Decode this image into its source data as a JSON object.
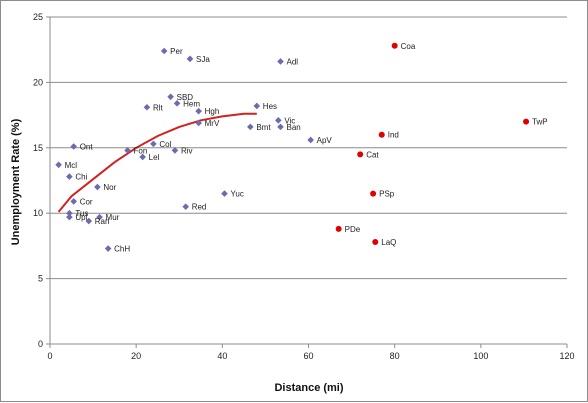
{
  "chart_data": {
    "type": "scatter",
    "title": "",
    "xlabel": "Distance (mi)",
    "ylabel": "Unemployment Rate (%)",
    "xlim": [
      0,
      120
    ],
    "ylim": [
      0,
      25
    ],
    "xticks": [
      "0",
      "20",
      "40",
      "60",
      "80",
      "100",
      "120"
    ],
    "yticks": [
      "0",
      "5",
      "10",
      "15",
      "20",
      "25"
    ],
    "grid": "horizontal",
    "colors": {
      "blue": "#6b6bb0",
      "red": "#e00000",
      "trend": "#d42020"
    },
    "series": [
      {
        "marker": "diamond",
        "color": "#6b6bb0",
        "points": [
          {
            "label": "Per",
            "x": 26.5,
            "y": 22.4
          },
          {
            "label": "SJa",
            "x": 32.5,
            "y": 21.8
          },
          {
            "label": "Adl",
            "x": 53.5,
            "y": 21.6
          },
          {
            "label": "SBD",
            "x": 28.0,
            "y": 18.9
          },
          {
            "label": "Hem",
            "x": 29.5,
            "y": 18.4
          },
          {
            "label": "Rlt",
            "x": 22.5,
            "y": 18.1
          },
          {
            "label": "Hes",
            "x": 48.0,
            "y": 18.2
          },
          {
            "label": "Hgh",
            "x": 34.5,
            "y": 17.8
          },
          {
            "label": "MrV",
            "x": 34.5,
            "y": 16.9
          },
          {
            "label": "Vic",
            "x": 53.0,
            "y": 17.1
          },
          {
            "label": "Ban",
            "x": 53.5,
            "y": 16.6
          },
          {
            "label": "Bmt",
            "x": 46.5,
            "y": 16.6
          },
          {
            "label": "ApV",
            "x": 60.5,
            "y": 15.6
          },
          {
            "label": "Ont",
            "x": 5.5,
            "y": 15.1
          },
          {
            "label": "Col",
            "x": 24.0,
            "y": 15.3
          },
          {
            "label": "Fon",
            "x": 18.0,
            "y": 14.8
          },
          {
            "label": "Riv",
            "x": 29.0,
            "y": 14.8
          },
          {
            "label": "Lel",
            "x": 21.5,
            "y": 14.3
          },
          {
            "label": "Mcl",
            "x": 2.0,
            "y": 13.7
          },
          {
            "label": "Chi",
            "x": 4.5,
            "y": 12.8
          },
          {
            "label": "Nor",
            "x": 11.0,
            "y": 12.0
          },
          {
            "label": "Yuc",
            "x": 40.5,
            "y": 11.5
          },
          {
            "label": "Cor",
            "x": 5.5,
            "y": 10.9
          },
          {
            "label": "Red",
            "x": 31.5,
            "y": 10.5
          },
          {
            "label": "Tus",
            "x": 4.5,
            "y": 10.0
          },
          {
            "label": "Upl",
            "x": 4.5,
            "y": 9.7
          },
          {
            "label": "Mur",
            "x": 11.5,
            "y": 9.7
          },
          {
            "label": "Ran",
            "x": 9.0,
            "y": 9.4
          },
          {
            "label": "ChH",
            "x": 13.5,
            "y": 7.3
          }
        ]
      },
      {
        "marker": "circle",
        "color": "#e00000",
        "points": [
          {
            "label": "Coa",
            "x": 80.0,
            "y": 22.8
          },
          {
            "label": "TwP",
            "x": 110.5,
            "y": 17.0
          },
          {
            "label": "Ind",
            "x": 77.0,
            "y": 16.0
          },
          {
            "label": "Cat",
            "x": 72.0,
            "y": 14.5
          },
          {
            "label": "PSp",
            "x": 75.0,
            "y": 11.5
          },
          {
            "label": "PDe",
            "x": 67.0,
            "y": 8.8
          },
          {
            "label": "LaQ",
            "x": 75.5,
            "y": 7.8
          }
        ]
      }
    ],
    "trendline": {
      "color": "#d42020",
      "x": [
        2,
        5,
        10,
        15,
        20,
        25,
        30,
        35,
        40,
        45,
        48
      ],
      "y": [
        10.1,
        11.3,
        12.6,
        13.9,
        15.0,
        15.9,
        16.6,
        17.1,
        17.4,
        17.6,
        17.6
      ]
    }
  }
}
